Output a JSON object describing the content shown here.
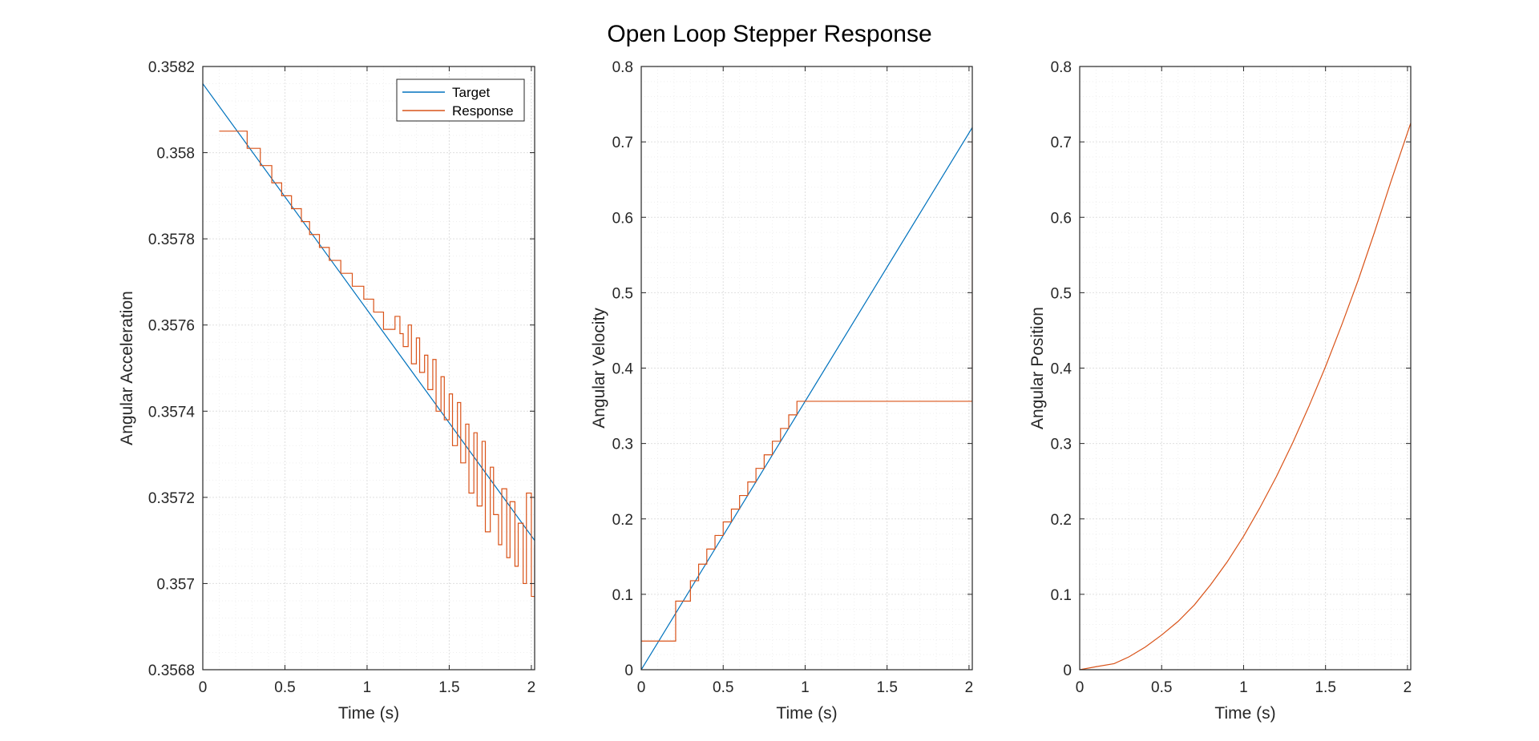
{
  "figure": {
    "title": "Open Loop Stepper Response"
  },
  "colors": {
    "target": "#0072BD",
    "response": "#D95319",
    "axis": "#262626",
    "grid_major": "#dfdfdf",
    "grid_minor": "#efefef"
  },
  "chart_data": [
    {
      "type": "line",
      "xlabel": "Time (s)",
      "ylabel": "Angular Acceleration",
      "xlim": [
        0,
        2.02
      ],
      "ylim": [
        0.3568,
        0.3582
      ],
      "xticks": [
        0,
        0.5,
        1,
        1.5,
        2
      ],
      "xtick_labels": [
        "0",
        "0.5",
        "1",
        "1.5",
        "2"
      ],
      "yticks": [
        0.3568,
        0.357,
        0.3572,
        0.3574,
        0.3576,
        0.3578,
        0.358,
        0.3582
      ],
      "ytick_labels": [
        "0.3568",
        "0.357",
        "0.3572",
        "0.3574",
        "0.3576",
        "0.3578",
        "0.358",
        "0.3582"
      ],
      "grid": "major and minor",
      "legend": {
        "placement": "top-right",
        "entries": [
          "Target",
          "Response"
        ]
      },
      "series": [
        {
          "name": "Target",
          "style": "line",
          "x": [
            0,
            2.02
          ],
          "y": [
            0.35816,
            0.3571
          ]
        },
        {
          "name": "Response",
          "style": "step",
          "x": [
            0.1,
            0.25,
            0.27,
            0.33,
            0.35,
            0.4,
            0.42,
            0.46,
            0.48,
            0.52,
            0.54,
            0.58,
            0.6,
            0.63,
            0.65,
            0.69,
            0.71,
            0.75,
            0.77,
            0.81,
            0.84,
            0.89,
            0.91,
            0.95,
            0.98,
            1.02,
            1.04,
            1.08,
            1.1,
            1.15,
            1.17,
            1.2,
            1.22,
            1.25,
            1.27,
            1.3,
            1.32,
            1.35,
            1.37,
            1.4,
            1.42,
            1.45,
            1.47,
            1.5,
            1.52,
            1.55,
            1.57,
            1.6,
            1.62,
            1.65,
            1.67,
            1.7,
            1.72,
            1.75,
            1.77,
            1.8,
            1.82,
            1.85,
            1.87,
            1.9,
            1.92,
            1.95,
            1.97,
            2.0,
            2.02
          ],
          "y": [
            0.35805,
            0.35805,
            0.35801,
            0.35801,
            0.35797,
            0.35797,
            0.35793,
            0.35793,
            0.3579,
            0.3579,
            0.35787,
            0.35787,
            0.35784,
            0.35784,
            0.35781,
            0.35781,
            0.35778,
            0.35778,
            0.35775,
            0.35775,
            0.35772,
            0.35772,
            0.35769,
            0.35769,
            0.35766,
            0.35766,
            0.35763,
            0.35763,
            0.35759,
            0.35759,
            0.35762,
            0.35758,
            0.35755,
            0.3576,
            0.35751,
            0.35757,
            0.35749,
            0.35753,
            0.35745,
            0.35752,
            0.3574,
            0.35748,
            0.35738,
            0.35744,
            0.35732,
            0.35742,
            0.35728,
            0.35737,
            0.35721,
            0.35735,
            0.35718,
            0.35733,
            0.35712,
            0.35727,
            0.35716,
            0.35709,
            0.35722,
            0.35706,
            0.35719,
            0.35704,
            0.35714,
            0.357,
            0.35721,
            0.35697,
            0.35709
          ]
        }
      ]
    },
    {
      "type": "line",
      "xlabel": "Time (s)",
      "ylabel": "Angular Velocity",
      "xlim": [
        0,
        2.02
      ],
      "ylim": [
        0,
        0.8
      ],
      "xticks": [
        0,
        0.5,
        1,
        1.5,
        2
      ],
      "xtick_labels": [
        "0",
        "0.5",
        "1",
        "1.5",
        "2"
      ],
      "yticks": [
        0,
        0.1,
        0.2,
        0.3,
        0.4,
        0.5,
        0.6,
        0.7,
        0.8
      ],
      "ytick_labels": [
        "0",
        "0.1",
        "0.2",
        "0.3",
        "0.4",
        "0.5",
        "0.6",
        "0.7",
        "0.8"
      ],
      "grid": "major and minor",
      "series": [
        {
          "style": "line",
          "x": [
            0,
            2.02
          ],
          "y": [
            0,
            0.719
          ]
        },
        {
          "style": "step",
          "x": [
            0,
            0.21,
            0.21,
            0.3,
            0.3,
            0.35,
            0.35,
            0.4,
            0.4,
            0.45,
            0.45,
            0.5,
            0.5,
            0.55,
            0.55,
            0.6,
            0.6,
            0.65,
            0.65,
            0.7,
            0.7,
            0.75,
            0.75,
            0.8,
            0.8,
            0.85,
            0.85,
            0.9,
            0.9,
            0.95,
            0.95,
            1.0,
            2.02
          ],
          "y": [
            0.038,
            0.038,
            0.091,
            0.091,
            0.118,
            0.118,
            0.14,
            0.14,
            0.16,
            0.16,
            0.178,
            0.178,
            0.196,
            0.196,
            0.213,
            0.213,
            0.231,
            0.231,
            0.249,
            0.249,
            0.267,
            0.267,
            0.285,
            0.285,
            0.303,
            0.303,
            0.32,
            0.32,
            0.338,
            0.338,
            0.356,
            0.356,
            0.719
          ]
        }
      ]
    },
    {
      "type": "line",
      "xlabel": "Time (s)",
      "ylabel": "Angular Position",
      "xlim": [
        0,
        2.02
      ],
      "ylim": [
        0,
        0.8
      ],
      "xticks": [
        0,
        0.5,
        1,
        1.5,
        2
      ],
      "xtick_labels": [
        "0",
        "0.5",
        "1",
        "1.5",
        "2"
      ],
      "yticks": [
        0,
        0.1,
        0.2,
        0.3,
        0.4,
        0.5,
        0.6,
        0.7,
        0.8
      ],
      "ytick_labels": [
        "0",
        "0.1",
        "0.2",
        "0.3",
        "0.4",
        "0.5",
        "0.6",
        "0.7",
        "0.8"
      ],
      "grid": "major and minor",
      "series": [
        {
          "style": "line",
          "x": [
            0,
            0.1,
            0.21,
            0.3,
            0.4,
            0.5,
            0.6,
            0.7,
            0.8,
            0.9,
            1.0,
            1.1,
            1.2,
            1.3,
            1.4,
            1.5,
            1.6,
            1.7,
            1.8,
            1.9,
            2.02
          ],
          "y": [
            0,
            0.004,
            0.008,
            0.017,
            0.03,
            0.046,
            0.064,
            0.086,
            0.113,
            0.143,
            0.177,
            0.215,
            0.256,
            0.301,
            0.35,
            0.402,
            0.458,
            0.517,
            0.581,
            0.648,
            0.725
          ]
        }
      ]
    }
  ]
}
